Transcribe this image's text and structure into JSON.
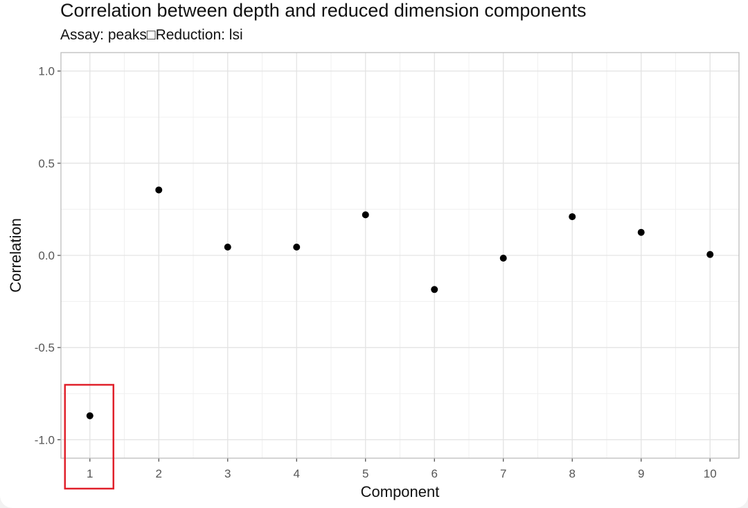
{
  "chart_data": {
    "type": "scatter",
    "title": "Correlation between depth and reduced dimension components",
    "subtitle": "Assay: peaks□Reduction: lsi",
    "xlabel": "Component",
    "ylabel": "Correlation",
    "x": [
      1,
      2,
      3,
      4,
      5,
      6,
      7,
      8,
      9,
      10
    ],
    "y": [
      -0.87,
      0.355,
      0.045,
      0.045,
      0.22,
      -0.185,
      -0.015,
      0.21,
      0.125,
      0.005
    ],
    "x_ticks": [
      "1",
      "2",
      "3",
      "4",
      "5",
      "6",
      "7",
      "8",
      "9",
      "10"
    ],
    "y_ticks": [
      "-1.0",
      "-0.5",
      "0.0",
      "0.5",
      "1.0"
    ],
    "ylim": [
      -1.1,
      1.1
    ],
    "grid": true,
    "point_color": "#000000",
    "highlight": {
      "x": 1,
      "color": "#e0202a"
    }
  }
}
